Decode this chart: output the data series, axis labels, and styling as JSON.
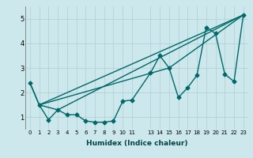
{
  "title": "",
  "xlabel": "Humidex (Indice chaleur)",
  "background_color": "#cce8ec",
  "grid_color": "#b0cdd4",
  "line_color": "#006868",
  "xlim": [
    -0.5,
    23.5
  ],
  "ylim": [
    0.5,
    5.5
  ],
  "xticks": [
    0,
    1,
    2,
    3,
    4,
    5,
    6,
    7,
    8,
    9,
    10,
    11,
    13,
    14,
    15,
    16,
    17,
    18,
    19,
    20,
    21,
    22,
    23
  ],
  "yticks": [
    1,
    2,
    3,
    4,
    5
  ],
  "series": [
    {
      "x": [
        0,
        1,
        2,
        3,
        4,
        5,
        6,
        7,
        8,
        9,
        10,
        11,
        13,
        14,
        15,
        16,
        17,
        18,
        19,
        20,
        21,
        22,
        23
      ],
      "y": [
        2.4,
        1.5,
        0.9,
        1.3,
        1.1,
        1.1,
        0.85,
        0.8,
        0.8,
        0.85,
        1.65,
        1.7,
        2.8,
        3.5,
        3.0,
        1.8,
        2.2,
        2.7,
        4.65,
        4.4,
        2.75,
        2.45,
        5.15
      ],
      "marker": "D",
      "markersize": 2.5,
      "linewidth": 1.0
    },
    {
      "x": [
        1,
        23
      ],
      "y": [
        1.5,
        5.15
      ],
      "marker": null,
      "linewidth": 1.0
    },
    {
      "x": [
        1,
        15,
        23
      ],
      "y": [
        1.5,
        3.0,
        5.15
      ],
      "marker": null,
      "linewidth": 1.0
    },
    {
      "x": [
        0,
        1,
        3,
        23
      ],
      "y": [
        2.4,
        1.5,
        1.3,
        5.15
      ],
      "marker": null,
      "linewidth": 1.0
    }
  ]
}
